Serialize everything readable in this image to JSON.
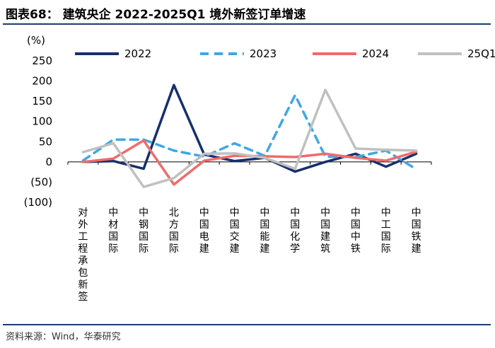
{
  "figure": {
    "label": "图表68：",
    "heading": "建筑央企 2022-2025Q1 境外新签订单增速",
    "source": "资料来源：Wind，华泰研究"
  },
  "chart_data": {
    "type": "line",
    "title": "建筑央企 2022-2025Q1 境外新签订单增速",
    "ylabel": "(%)",
    "ylim": [
      -100,
      250
    ],
    "yticks": [
      -100,
      -50,
      0,
      50,
      100,
      150,
      200,
      250
    ],
    "ytick_labels": [
      "(100)",
      "(50)",
      "0",
      "50",
      "100",
      "150",
      "200",
      "250"
    ],
    "categories": [
      "对外工程承包新签",
      "中材国际",
      "中钢国际",
      "北方国际",
      "中国电建",
      "中国交建",
      "中国能建",
      "中国化学",
      "中国建筑",
      "中国中铁",
      "中工国际",
      "中国铁建"
    ],
    "legend_position": "top",
    "series": [
      {
        "name": "2022",
        "color": "#17306b",
        "dash": "solid",
        "values": [
          0,
          2,
          -17,
          190,
          18,
          2,
          10,
          -24,
          0,
          20,
          -12,
          20
        ]
      },
      {
        "name": "2023",
        "color": "#3fa7e6",
        "dash": "dashed",
        "values": [
          3,
          55,
          55,
          28,
          13,
          46,
          15,
          165,
          13,
          12,
          28,
          -18
        ]
      },
      {
        "name": "2024",
        "color": "#f06b6b",
        "dash": "solid",
        "values": [
          0,
          8,
          53,
          -56,
          3,
          15,
          14,
          12,
          20,
          10,
          3,
          25
        ]
      },
      {
        "name": "25Q1",
        "color": "#c0c0c0",
        "dash": "solid",
        "values": [
          24,
          46,
          -62,
          -40,
          20,
          21,
          10,
          -17,
          178,
          33,
          30,
          28
        ]
      }
    ]
  }
}
